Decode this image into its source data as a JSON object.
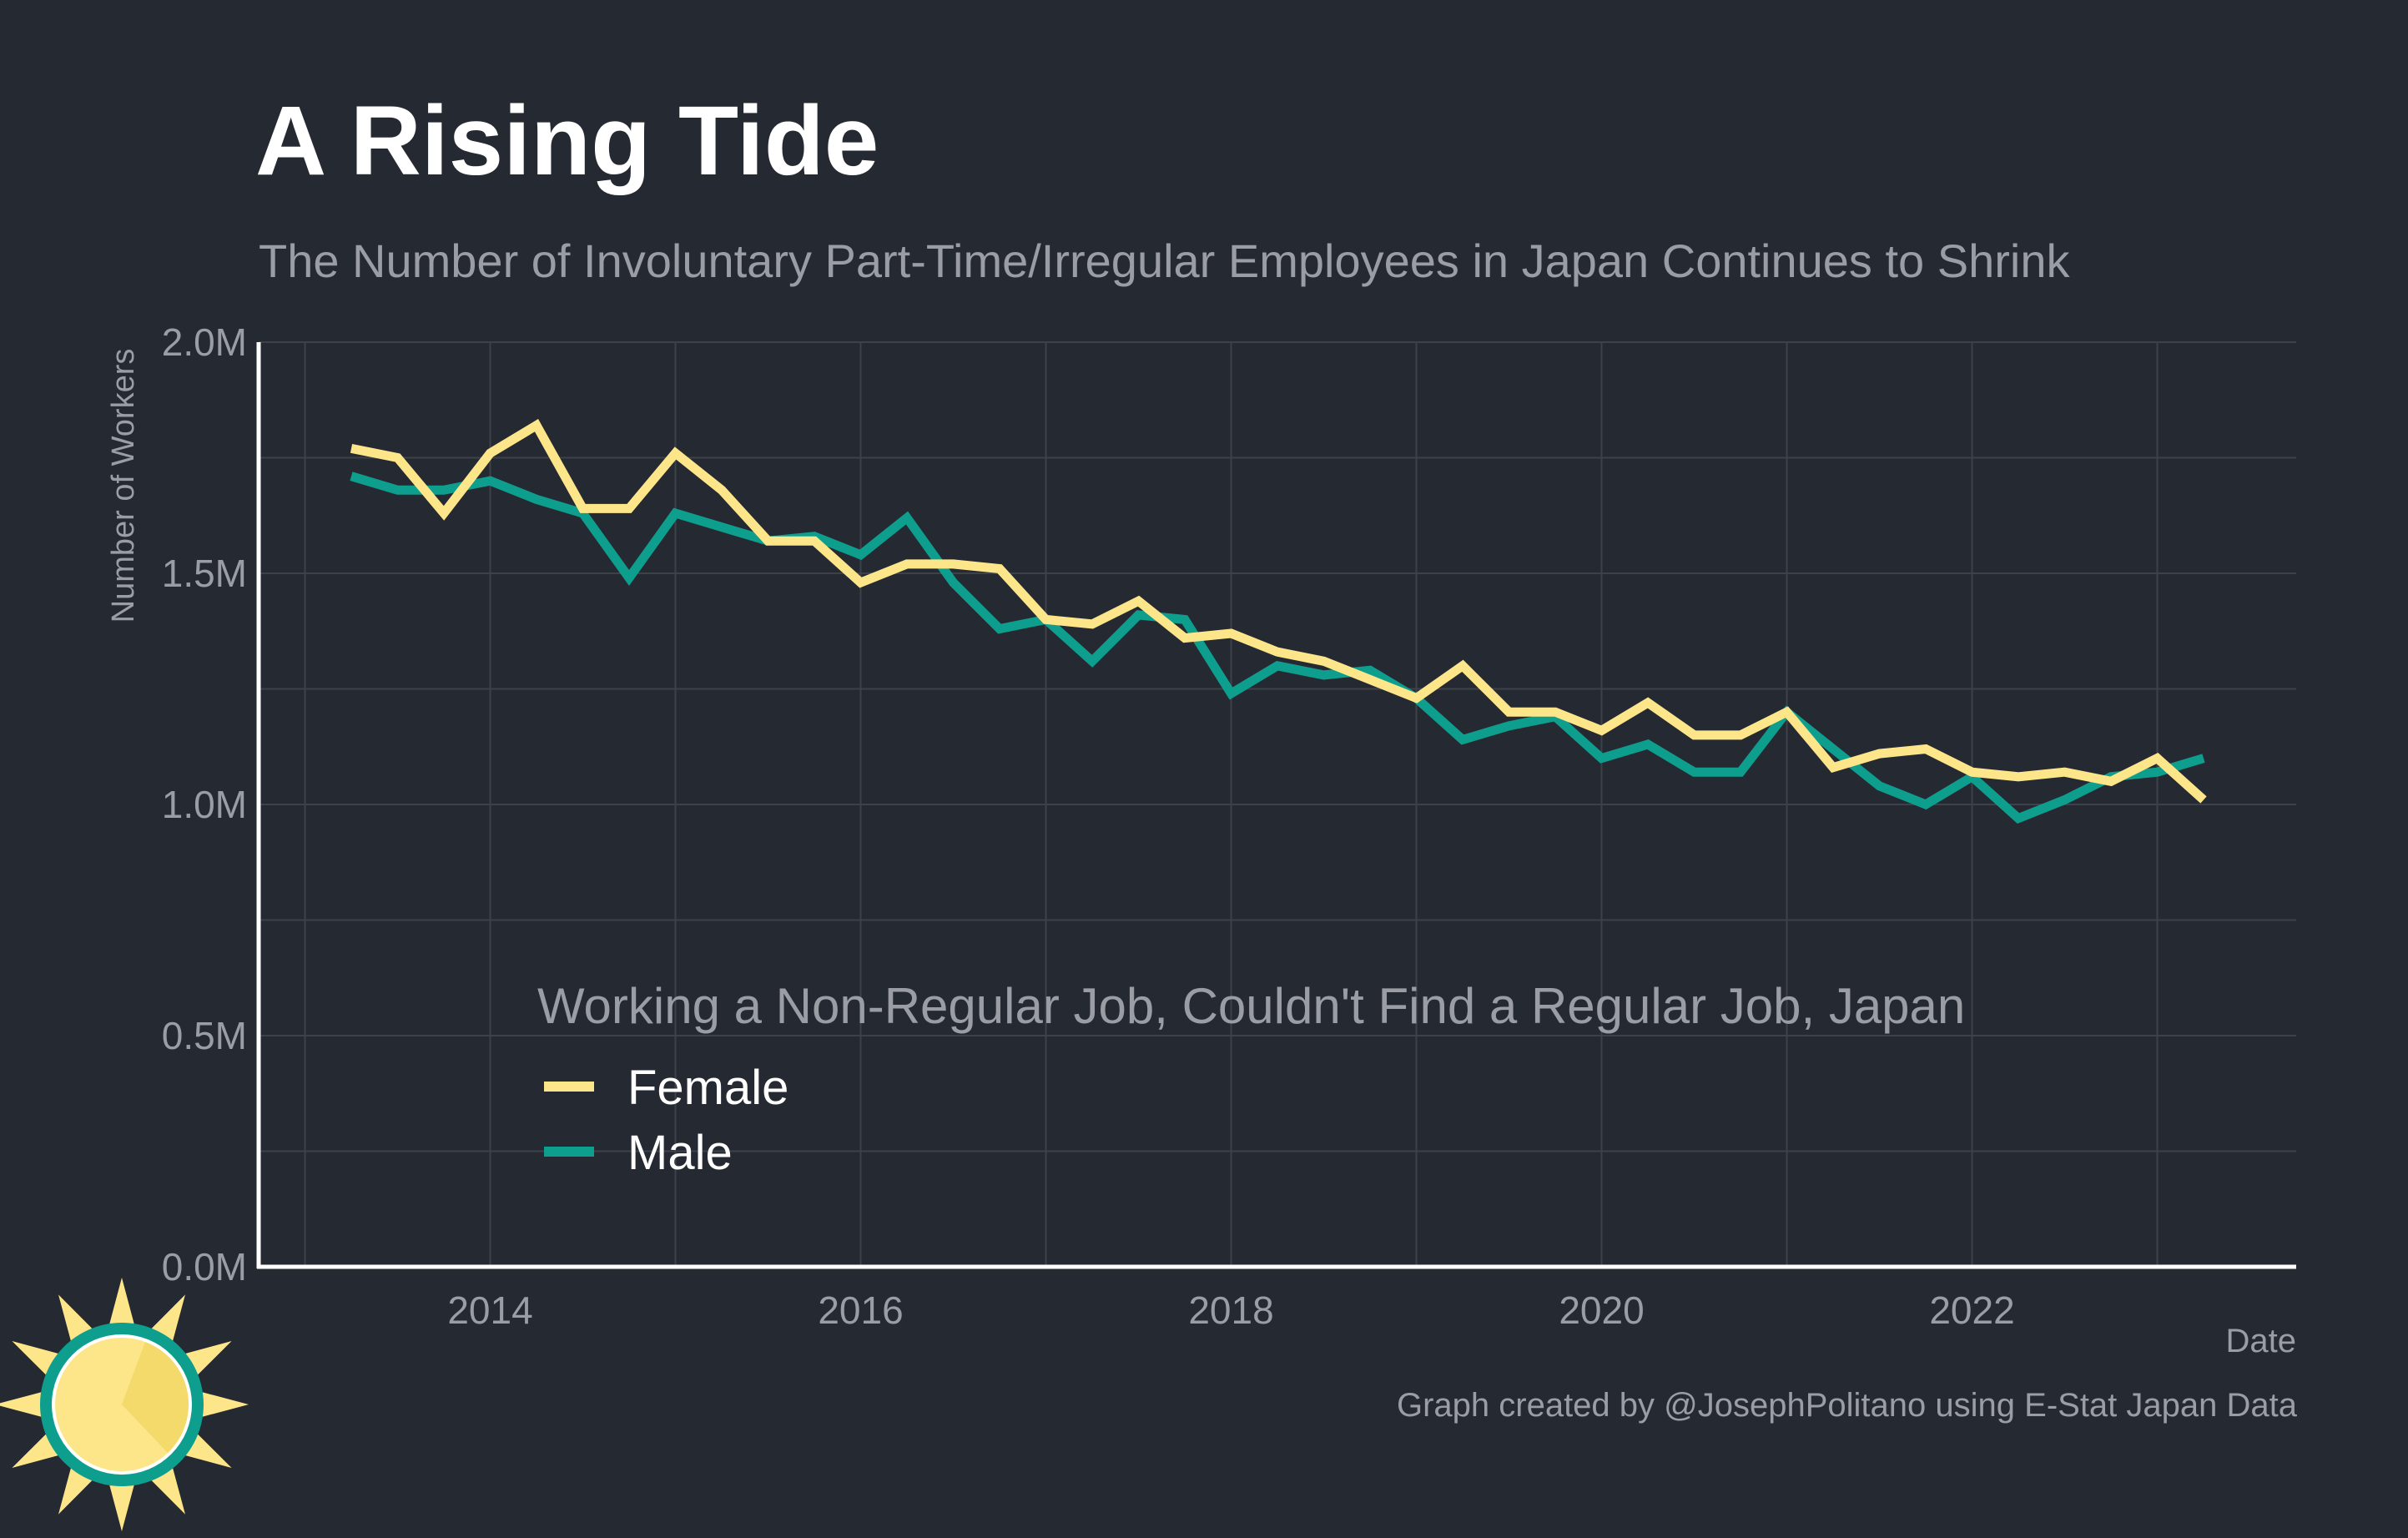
{
  "header": {
    "title": "A Rising Tide",
    "subtitle": "The Number of Involuntary Part-Time/Irregular Employees in Japan Continues to Shrink"
  },
  "footer": {
    "credit": "Graph created by @JosephPolitano using E-Stat Japan Data"
  },
  "colors": {
    "background": "#252932",
    "female": "#fde68a",
    "male": "#0e9e8e",
    "grid": "#3d414a",
    "axis": "#ffffff",
    "muted_text": "#9a9da4"
  },
  "logo": {
    "icon": "sun-logo-icon"
  },
  "chart_data": {
    "type": "line",
    "xlabel": "Date",
    "ylabel": "Number of Workers",
    "xlim": [
      2012.75,
      2023.75
    ],
    "ylim": [
      0,
      2.0
    ],
    "x_ticks": [
      2014,
      2016,
      2018,
      2020,
      2022
    ],
    "x_tick_labels": [
      "2014",
      "2016",
      "2018",
      "2020",
      "2022"
    ],
    "y_ticks": [
      0,
      0.5,
      1.0,
      1.5,
      2.0
    ],
    "y_tick_labels": [
      "0.0M",
      "0.5M",
      "1.0M",
      "1.5M",
      "2.0M"
    ],
    "grid": true,
    "legend": {
      "title": "Working a Non-Regular Job, Couldn't Find a Regular Job, Japan",
      "placement": "bottom-left"
    },
    "x": [
      2013.25,
      2013.5,
      2013.75,
      2014.0,
      2014.25,
      2014.5,
      2014.75,
      2015.0,
      2015.25,
      2015.5,
      2015.75,
      2016.0,
      2016.25,
      2016.5,
      2016.75,
      2017.0,
      2017.25,
      2017.5,
      2017.75,
      2018.0,
      2018.25,
      2018.5,
      2018.75,
      2019.0,
      2019.25,
      2019.5,
      2019.75,
      2020.0,
      2020.25,
      2020.5,
      2020.75,
      2021.0,
      2021.25,
      2021.5,
      2021.75,
      2022.0,
      2022.25,
      2022.5,
      2022.75,
      2023.0,
      2023.25
    ],
    "series": [
      {
        "name": "Female",
        "values": [
          1.77,
          1.75,
          1.63,
          1.76,
          1.82,
          1.64,
          1.64,
          1.76,
          1.68,
          1.57,
          1.57,
          1.48,
          1.52,
          1.52,
          1.51,
          1.4,
          1.39,
          1.44,
          1.36,
          1.37,
          1.33,
          1.31,
          1.27,
          1.23,
          1.3,
          1.2,
          1.2,
          1.16,
          1.22,
          1.15,
          1.15,
          1.2,
          1.08,
          1.11,
          1.12,
          1.07,
          1.06,
          1.07,
          1.05,
          1.1,
          1.01
        ]
      },
      {
        "name": "Male",
        "values": [
          1.71,
          1.68,
          1.68,
          1.7,
          1.66,
          1.63,
          1.49,
          1.63,
          1.6,
          1.57,
          1.58,
          1.54,
          1.62,
          1.48,
          1.38,
          1.4,
          1.31,
          1.41,
          1.4,
          1.24,
          1.3,
          1.28,
          1.29,
          1.23,
          1.14,
          1.17,
          1.19,
          1.1,
          1.13,
          1.07,
          1.07,
          1.2,
          1.12,
          1.04,
          1.0,
          1.06,
          0.97,
          1.01,
          1.06,
          1.07,
          1.1
        ]
      }
    ]
  }
}
